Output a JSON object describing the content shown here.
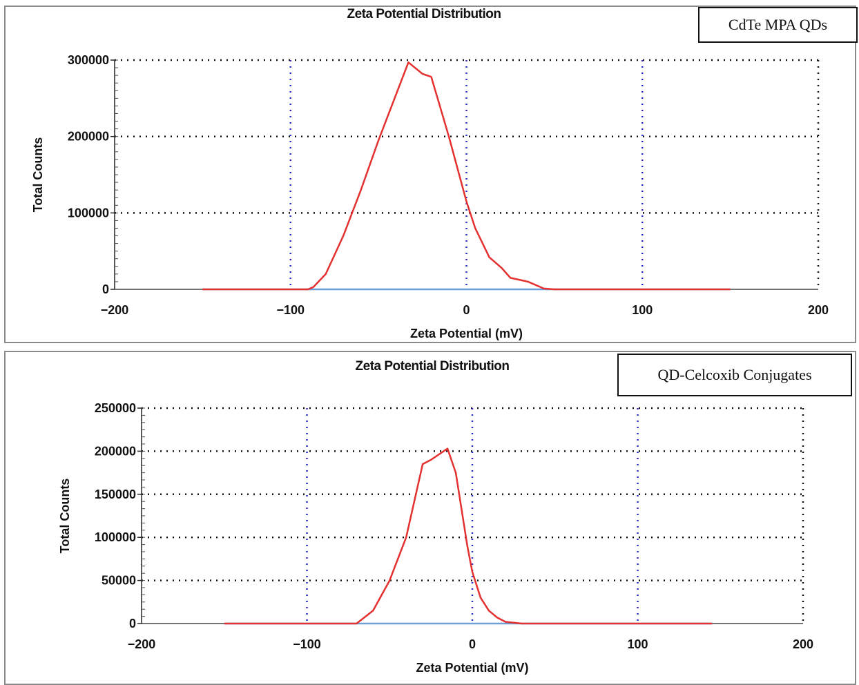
{
  "chart_data": [
    {
      "type": "line",
      "title": "Zeta Potential Distribution",
      "label_box": "CdTe MPA QDs",
      "xlabel": "Zeta Potential (mV)",
      "ylabel": "Total Counts",
      "xlim": [
        -200,
        200
      ],
      "ylim": [
        0,
        300000
      ],
      "x_ticks": [
        -200,
        -100,
        0,
        100,
        200
      ],
      "y_ticks": [
        0,
        100000,
        200000,
        300000
      ],
      "grid": true,
      "colors": {
        "series": "#e53030",
        "baseline": "#6a9fd8",
        "grid_x": "#2a2acc",
        "grid_y": "#111111"
      },
      "series": [
        {
          "x": [
            -150,
            -120,
            -90,
            -87,
            -80,
            -70,
            -60,
            -50,
            -40,
            -33,
            -25,
            -20,
            -10,
            0,
            5,
            13,
            20,
            25,
            35,
            44,
            50,
            100,
            150
          ],
          "y": [
            0,
            0,
            0,
            3000,
            20000,
            70000,
            130000,
            195000,
            255000,
            297000,
            282000,
            278000,
            200000,
            115000,
            80000,
            42000,
            28000,
            15000,
            10000,
            1000,
            0,
            0,
            0
          ]
        }
      ]
    },
    {
      "type": "line",
      "title": "Zeta Potential Distribution",
      "label_box": "QD-Celcoxib Conjugates",
      "xlabel": "Zeta Potential (mV)",
      "ylabel": "Total Counts",
      "xlim": [
        -200,
        200
      ],
      "ylim": [
        0,
        250000
      ],
      "x_ticks": [
        -200,
        -100,
        0,
        100,
        200
      ],
      "y_ticks": [
        0,
        50000,
        100000,
        150000,
        200000,
        250000
      ],
      "grid": true,
      "colors": {
        "series": "#e53030",
        "baseline": "#6a9fd8",
        "grid_x": "#2a2acc",
        "grid_y": "#111111"
      },
      "series": [
        {
          "x": [
            -150,
            -100,
            -70,
            -60,
            -50,
            -40,
            -30,
            -25,
            -15,
            -10,
            -3,
            0,
            5,
            10,
            15,
            20,
            30,
            100,
            145
          ],
          "y": [
            0,
            0,
            0,
            15000,
            50000,
            100000,
            185000,
            190000,
            203000,
            175000,
            90000,
            60000,
            30000,
            15000,
            7000,
            2000,
            0,
            0,
            0
          ]
        }
      ]
    }
  ]
}
